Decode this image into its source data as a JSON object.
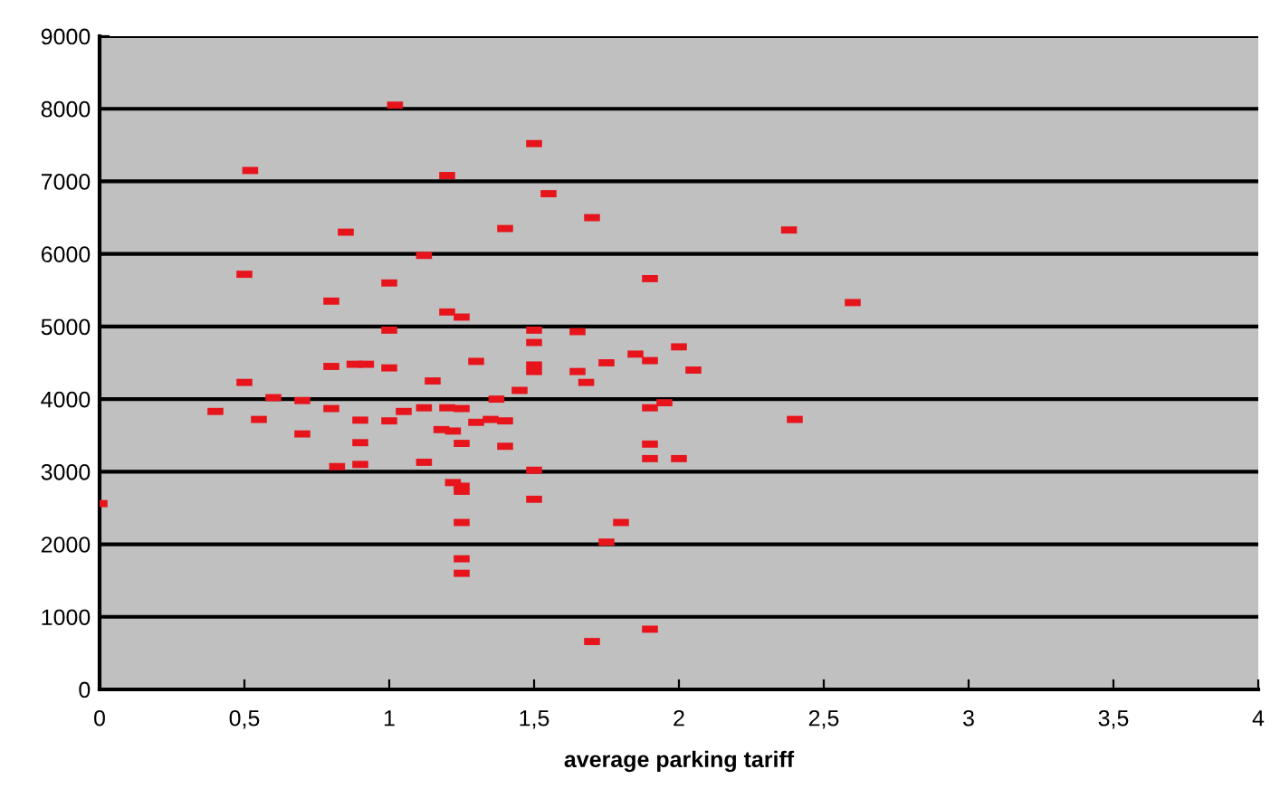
{
  "chart_data": {
    "type": "scatter",
    "xlabel": "average parking tariff",
    "x": [
      1.02,
      0.52,
      1.2,
      1.5,
      1.55,
      0.85,
      1.4,
      1.7,
      2.38,
      1.12,
      1.0,
      0.5,
      0.8,
      1.9,
      2.6,
      1.2,
      1.25,
      1.0,
      1.5,
      1.5,
      1.65,
      1.85,
      2.0,
      1.75,
      1.9,
      1.5,
      1.5,
      1.65,
      1.68,
      2.05,
      0.5,
      0.8,
      0.88,
      0.92,
      1.0,
      1.15,
      1.3,
      1.45,
      1.37,
      1.2,
      1.25,
      0.6,
      0.7,
      0.4,
      0.55,
      0.8,
      0.9,
      1.0,
      1.05,
      1.12,
      1.18,
      1.22,
      1.3,
      1.35,
      1.4,
      0.7,
      0.9,
      1.25,
      1.4,
      1.9,
      1.95,
      1.9,
      1.9,
      2.0,
      1.12,
      0.9,
      0.82,
      1.5,
      1.22,
      1.25,
      1.25,
      1.5,
      0.0,
      1.25,
      1.8,
      1.75,
      1.25,
      1.25,
      1.9,
      1.7,
      2.4
    ],
    "values": [
      8050,
      7150,
      7080,
      7520,
      6830,
      6300,
      6350,
      6500,
      6330,
      5980,
      5600,
      5720,
      5350,
      5660,
      5330,
      5200,
      5130,
      4950,
      4780,
      4950,
      4930,
      4620,
      4720,
      4500,
      4530,
      4470,
      4380,
      4380,
      4230,
      4400,
      4230,
      4450,
      4480,
      4480,
      4430,
      4250,
      4520,
      4120,
      4000,
      3880,
      3870,
      4020,
      3980,
      3830,
      3720,
      3870,
      3710,
      3700,
      3830,
      3880,
      3580,
      3560,
      3680,
      3720,
      3700,
      3520,
      3400,
      3390,
      3350,
      3880,
      3950,
      3380,
      3180,
      3180,
      3130,
      3100,
      3070,
      3020,
      2850,
      2800,
      2730,
      2620,
      2560,
      2300,
      2300,
      2030,
      1800,
      1600,
      830,
      660,
      3720
    ],
    "color": "#e8141c",
    "xlim": [
      0,
      4
    ],
    "xticks": [
      0,
      {
        "value": 0.5,
        "label": "0,5"
      },
      1,
      {
        "value": 1.5,
        "label": "1,5"
      },
      2,
      {
        "value": 2.5,
        "label": "2,5"
      },
      3,
      {
        "value": 3.5,
        "label": "3,5"
      },
      4
    ],
    "ylim": [
      0,
      9000
    ],
    "yticks": [
      0,
      1000,
      2000,
      3000,
      4000,
      5000,
      6000,
      7000,
      8000,
      9000
    ],
    "grid": "y",
    "legend": false
  }
}
